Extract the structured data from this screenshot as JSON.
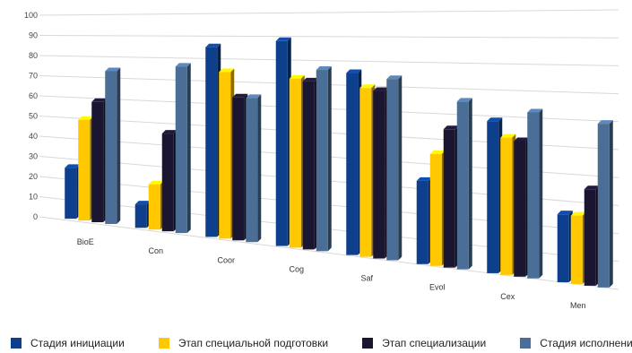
{
  "chart_data": {
    "type": "bar",
    "categories": [
      "BioE",
      "Con",
      "Coor",
      "Cog",
      "Saf",
      "Evol",
      "Cex",
      "Men"
    ],
    "ylim": [
      0,
      100
    ],
    "yticks": [
      0,
      10,
      20,
      30,
      40,
      50,
      60,
      70,
      80,
      90,
      100
    ],
    "grid": true,
    "legend_position": "bottom",
    "series": [
      {
        "name": "Стадия инициации",
        "color": "#0d3f8c",
        "values": [
          25,
          11,
          85,
          88,
          75,
          33,
          58,
          25
        ]
      },
      {
        "name": "Этап специальной подготовки",
        "color": "#ffc800",
        "values": [
          49,
          21,
          74,
          72,
          69,
          44,
          52,
          25
        ]
      },
      {
        "name": "Этап специализации",
        "color": "#1a1530",
        "values": [
          58,
          45,
          63,
          71,
          68,
          54,
          51,
          35
        ]
      },
      {
        "name": "Стадия исполнения",
        "color": "#4a6e96",
        "values": [
          73,
          76,
          63,
          76,
          73,
          65,
          62,
          59
        ]
      }
    ]
  }
}
